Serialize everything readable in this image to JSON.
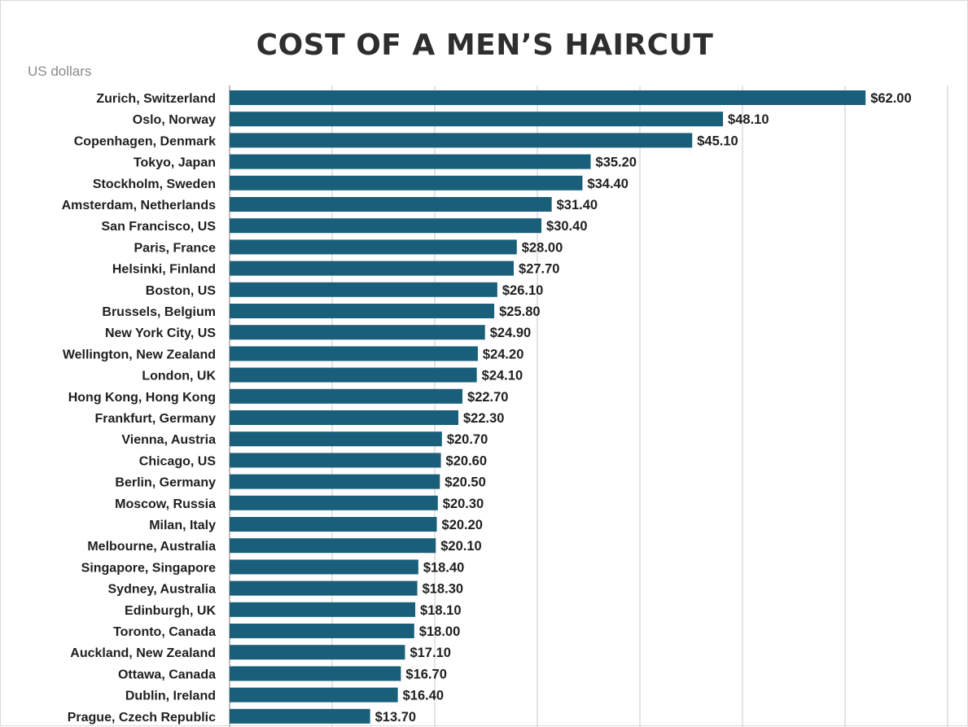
{
  "chart_data": {
    "type": "bar",
    "orientation": "horizontal",
    "title": "COST OF A MEN’S HAIRCUT",
    "unit_label": "US dollars",
    "value_prefix": "$",
    "bar_color": "#1a5f7a",
    "grid": true,
    "xlim": [
      0,
      70
    ],
    "grid_step": 10,
    "categories": [
      "Zurich, Switzerland",
      "Oslo, Norway",
      "Copenhagen, Denmark",
      "Tokyo, Japan",
      "Stockholm, Sweden",
      "Amsterdam, Netherlands",
      "San Francisco, US",
      "Paris, France",
      "Helsinki, Finland",
      "Boston, US",
      "Brussels, Belgium",
      "New York City, US",
      "Wellington, New Zealand",
      "London, UK",
      "Hong Kong, Hong Kong",
      "Frankfurt, Germany",
      "Vienna, Austria",
      "Chicago, US",
      "Berlin, Germany",
      "Moscow, Russia",
      "Milan, Italy",
      "Melbourne, Australia",
      "Singapore, Singapore",
      "Sydney, Australia",
      "Edinburgh, UK",
      "Toronto, Canada",
      "Auckland, New Zealand",
      "Ottawa, Canada",
      "Dublin, Ireland",
      "Prague, Czech Republic"
    ],
    "values": [
      62.0,
      48.1,
      45.1,
      35.2,
      34.4,
      31.4,
      30.4,
      28.0,
      27.7,
      26.1,
      25.8,
      24.9,
      24.2,
      24.1,
      22.7,
      22.3,
      20.7,
      20.6,
      20.5,
      20.3,
      20.2,
      20.1,
      18.4,
      18.3,
      18.1,
      18.0,
      17.1,
      16.7,
      16.4,
      13.7
    ],
    "value_labels": [
      "$62.00",
      "$48.10",
      "$45.10",
      "$35.20",
      "$34.40",
      "$31.40",
      "$30.40",
      "$28.00",
      "$27.70",
      "$26.10",
      "$25.80",
      "$24.90",
      "$24.20",
      "$24.10",
      "$22.70",
      "$22.30",
      "$20.70",
      "$20.60",
      "$20.50",
      "$20.30",
      "$20.20",
      "$20.10",
      "$18.40",
      "$18.30",
      "$18.10",
      "$18.00",
      "$17.10",
      "$16.70",
      "$16.40",
      "$13.70"
    ]
  }
}
